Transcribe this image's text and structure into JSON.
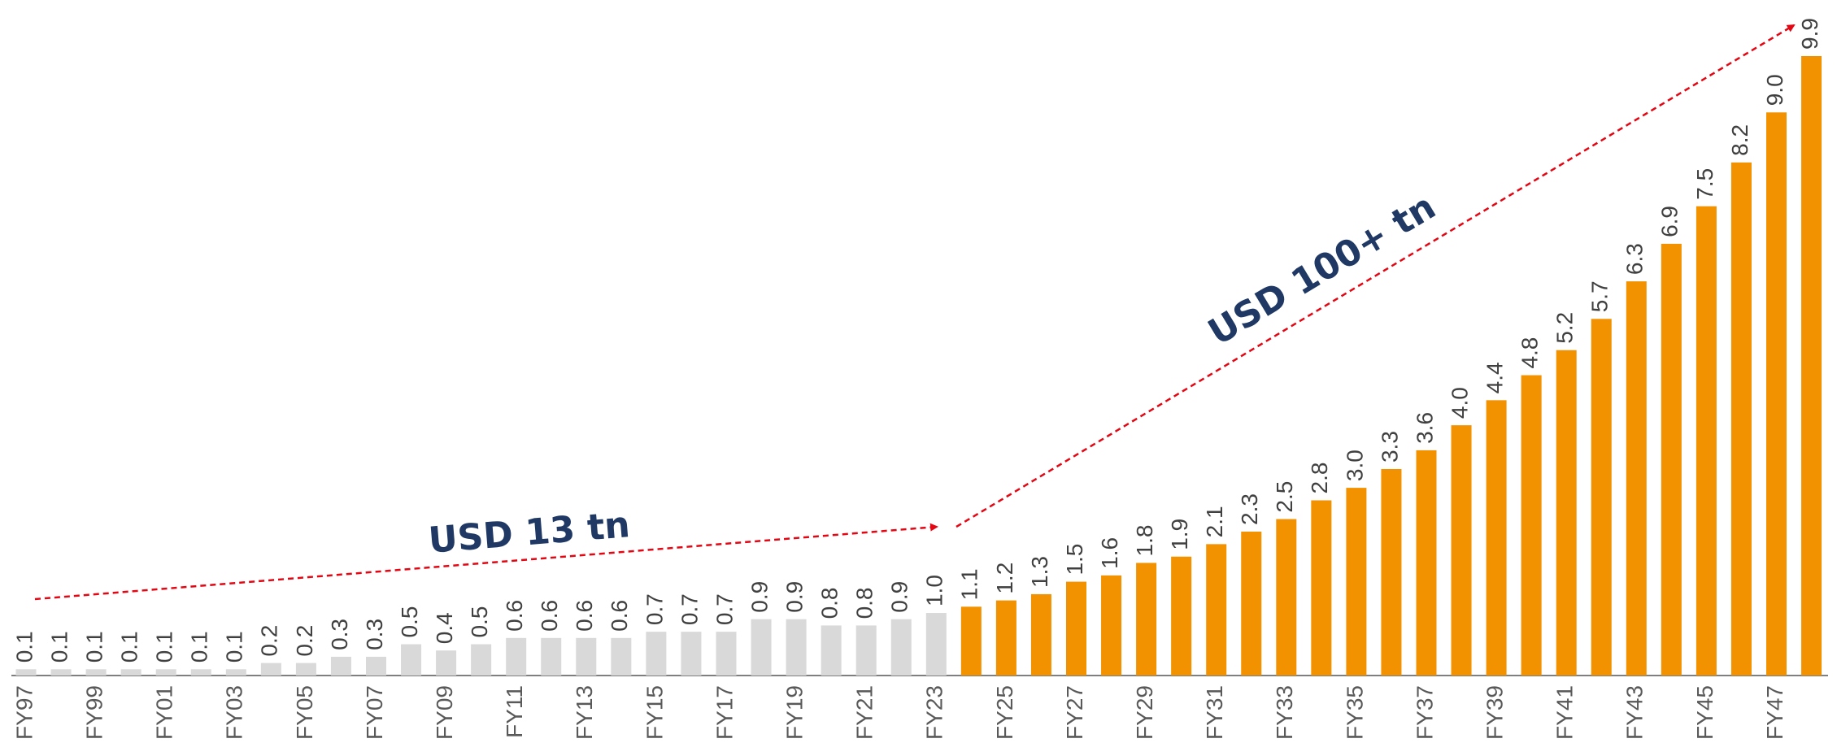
{
  "chart_data": {
    "type": "bar",
    "categories": [
      "FY97",
      null,
      "FY99",
      null,
      "FY01",
      null,
      "FY03",
      null,
      "FY05",
      null,
      "FY07",
      null,
      "FY09",
      null,
      "FY11",
      null,
      "FY13",
      null,
      "FY15",
      null,
      "FY17",
      null,
      "FY19",
      null,
      "FY21",
      null,
      "FY23",
      null,
      "FY25",
      null,
      "FY27",
      null,
      "FY29",
      null,
      "FY31",
      null,
      "FY33",
      null,
      "FY35",
      null,
      "FY37",
      null,
      "FY39",
      null,
      "FY41",
      null,
      "FY43",
      null,
      "FY45",
      null,
      "FY47",
      null
    ],
    "values": [
      0.1,
      0.1,
      0.1,
      0.1,
      0.1,
      0.1,
      0.1,
      0.2,
      0.2,
      0.3,
      0.3,
      0.5,
      0.4,
      0.5,
      0.6,
      0.6,
      0.6,
      0.6,
      0.7,
      0.7,
      0.7,
      0.9,
      0.9,
      0.8,
      0.8,
      0.9,
      1.0,
      1.1,
      1.2,
      1.3,
      1.5,
      1.6,
      1.8,
      1.9,
      2.1,
      2.3,
      2.5,
      2.8,
      3.0,
      3.3,
      3.6,
      4.0,
      4.4,
      4.8,
      5.2,
      5.7,
      6.3,
      6.9,
      7.5,
      8.2,
      9.0,
      9.9
    ],
    "value_labels": [
      "0.1",
      "0.1",
      "0.1",
      "0.1",
      "0.1",
      "0.1",
      "0.1",
      "0.2",
      "0.2",
      "0.3",
      "0.3",
      "0.5",
      "0.4",
      "0.5",
      "0.6",
      "0.6",
      "0.6",
      "0.6",
      "0.7",
      "0.7",
      "0.7",
      "0.9",
      "0.9",
      "0.8",
      "0.8",
      "0.9",
      "1.0",
      "1.1",
      "1.2",
      "1.3",
      "1.5",
      "1.6",
      "1.8",
      "1.9",
      "2.1",
      "2.3",
      "2.5",
      "2.8",
      "3.0",
      "3.3",
      "3.6",
      "4.0",
      "4.4",
      "4.8",
      "5.2",
      "5.7",
      "6.3",
      "6.9",
      "7.5",
      "8.2",
      "9.0",
      "9.9"
    ],
    "colors": [
      "#d9d9d9",
      "#d9d9d9",
      "#d9d9d9",
      "#d9d9d9",
      "#d9d9d9",
      "#d9d9d9",
      "#d9d9d9",
      "#d9d9d9",
      "#d9d9d9",
      "#d9d9d9",
      "#d9d9d9",
      "#d9d9d9",
      "#d9d9d9",
      "#d9d9d9",
      "#d9d9d9",
      "#d9d9d9",
      "#d9d9d9",
      "#d9d9d9",
      "#d9d9d9",
      "#d9d9d9",
      "#d9d9d9",
      "#d9d9d9",
      "#d9d9d9",
      "#d9d9d9",
      "#d9d9d9",
      "#d9d9d9",
      "#d9d9d9",
      "#f39200",
      "#f39200",
      "#f39200",
      "#f39200",
      "#f39200",
      "#f39200",
      "#f39200",
      "#f39200",
      "#f39200",
      "#f39200",
      "#f39200",
      "#f39200",
      "#f39200",
      "#f39200",
      "#f39200",
      "#f39200",
      "#f39200",
      "#f39200",
      "#f39200",
      "#f39200",
      "#f39200",
      "#f39200",
      "#f39200",
      "#f39200",
      "#f39200"
    ],
    "annotations": [
      "USD 13 tn",
      "USD 100+ tn"
    ]
  }
}
